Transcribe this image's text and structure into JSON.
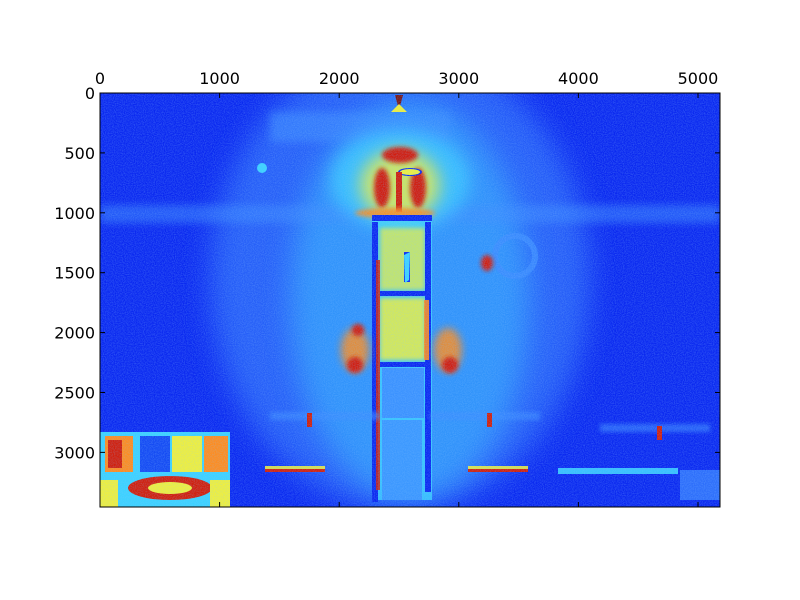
{
  "chart_data": {
    "type": "heatmap",
    "title": "",
    "xlabel": "",
    "ylabel": "",
    "colormap": "jet",
    "xlim": [
      0,
      5184
    ],
    "ylim": [
      3456,
      0
    ],
    "x_axis_position": "top",
    "x_ticks": [
      0,
      1000,
      2000,
      3000,
      4000,
      5000
    ],
    "x_tick_labels": [
      "0",
      "1000",
      "2000",
      "3000",
      "4000",
      "5000"
    ],
    "y_ticks": [
      0,
      500,
      1000,
      1500,
      2000,
      2500,
      3000
    ],
    "y_tick_labels": [
      "0",
      "500",
      "1000",
      "1500",
      "2000",
      "2500",
      "3000"
    ],
    "grid": false,
    "legend": "none"
  },
  "colors": {
    "background_field": "#0a28f0",
    "light_blue": "#3c8cff",
    "cyan": "#3cd2ff",
    "yellow": "#f0f03c",
    "orange": "#ff8c1e",
    "red": "#d21e0a",
    "dark_red": "#781414"
  }
}
